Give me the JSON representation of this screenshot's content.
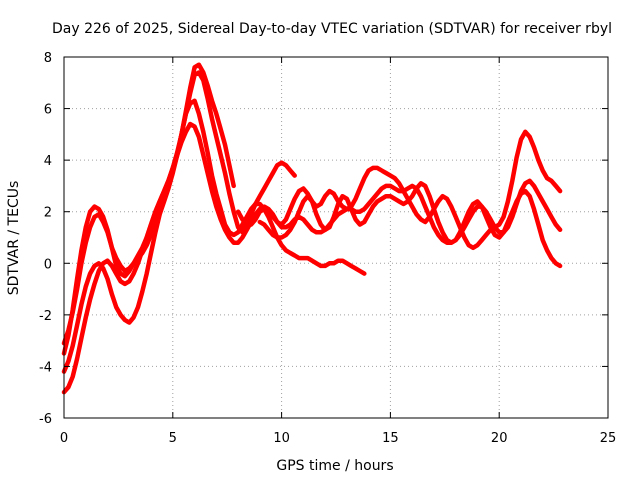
{
  "chart_data": {
    "type": "line",
    "title": "Day 226 of 2025, Sidereal Day-to-day VTEC variation (SDTVAR) for receiver rbyl",
    "xlabel": "GPS time / hours",
    "ylabel": "SDTVAR / TECUs",
    "xlim": [
      0,
      25
    ],
    "ylim": [
      -6,
      8
    ],
    "xticks": [
      0,
      5,
      10,
      15,
      20,
      25
    ],
    "yticks": [
      -6,
      -4,
      -2,
      0,
      2,
      4,
      6,
      8
    ],
    "grid": true,
    "color": "#ff0000",
    "series": [
      {
        "name": "track-1",
        "x": [
          0.0,
          0.2,
          0.4,
          0.6,
          0.8,
          1.0,
          1.2,
          1.4,
          1.6,
          1.8,
          2.0,
          2.2,
          2.4,
          2.6,
          2.8,
          3.0,
          3.2,
          3.4,
          3.6,
          3.8,
          4.0,
          4.2,
          4.4,
          4.6,
          4.8,
          5.0,
          5.2,
          5.4,
          5.6,
          5.8,
          6.0,
          6.2,
          6.4,
          6.6,
          6.8,
          7.0,
          7.2,
          7.4,
          7.6,
          7.8
        ],
        "y": [
          -3.1,
          -2.6,
          -1.9,
          -1.0,
          0.0,
          0.8,
          1.4,
          1.8,
          1.9,
          1.6,
          1.2,
          0.6,
          0.2,
          -0.1,
          -0.3,
          -0.2,
          0.0,
          0.2,
          0.4,
          0.7,
          1.1,
          1.6,
          2.1,
          2.6,
          3.1,
          3.6,
          4.2,
          5.0,
          5.9,
          6.8,
          7.6,
          7.7,
          7.4,
          6.9,
          6.3,
          5.8,
          5.2,
          4.6,
          3.8,
          3.0
        ]
      },
      {
        "name": "track-2",
        "x": [
          0.0,
          0.2,
          0.4,
          0.6,
          0.8,
          1.0,
          1.2,
          1.4,
          1.6,
          1.8,
          2.0,
          2.2,
          2.4,
          2.6,
          2.8,
          3.0,
          3.2,
          3.4,
          3.6,
          3.8,
          4.0,
          4.2,
          4.4,
          4.6,
          4.8,
          5.0,
          5.2,
          5.4,
          5.6,
          5.8,
          6.0,
          6.2,
          6.4,
          6.6,
          6.8,
          7.0,
          7.2,
          7.4,
          7.6,
          7.8,
          8.0,
          8.2,
          8.4,
          8.6,
          8.8,
          9.0,
          9.2,
          9.4,
          9.6,
          9.8,
          10.0,
          10.2,
          10.4,
          10.6
        ],
        "y": [
          -3.5,
          -2.8,
          -1.8,
          -0.6,
          0.5,
          1.4,
          2.0,
          2.2,
          2.1,
          1.8,
          1.3,
          0.6,
          -0.1,
          -0.4,
          -0.5,
          -0.3,
          0.0,
          0.3,
          0.6,
          1.0,
          1.5,
          2.0,
          2.4,
          2.8,
          3.2,
          3.7,
          4.3,
          5.0,
          5.8,
          6.6,
          7.3,
          7.4,
          7.1,
          6.4,
          5.6,
          4.9,
          4.2,
          3.5,
          2.7,
          2.0,
          1.4,
          1.2,
          1.5,
          1.9,
          2.3,
          2.6,
          2.9,
          3.2,
          3.5,
          3.8,
          3.9,
          3.8,
          3.6,
          3.4
        ]
      },
      {
        "name": "track-3",
        "x": [
          0.0,
          0.2,
          0.4,
          0.6,
          0.8,
          1.0,
          1.2,
          1.4,
          1.6,
          1.8,
          2.0,
          2.2,
          2.4,
          2.6,
          2.8,
          3.0,
          3.2,
          3.4,
          3.6,
          3.8,
          4.0,
          4.2,
          4.4,
          4.6,
          4.8,
          5.0,
          5.2,
          5.4,
          5.6,
          5.8,
          6.0,
          6.2,
          6.4,
          6.6,
          6.8,
          7.0,
          7.2,
          7.4,
          7.6,
          7.8,
          8.0,
          8.2,
          8.4,
          8.6,
          8.8,
          9.0,
          9.2,
          9.4,
          9.6,
          9.8,
          10.0,
          10.2,
          10.4,
          10.6,
          10.8,
          11.0,
          11.2,
          11.4,
          11.6,
          11.8,
          12.0,
          12.2,
          12.4,
          12.6,
          12.8,
          13.0,
          13.2,
          13.4,
          13.6,
          13.8
        ],
        "y": [
          -4.2,
          -3.8,
          -3.2,
          -2.4,
          -1.6,
          -0.9,
          -0.4,
          -0.1,
          0.0,
          -0.2,
          -0.6,
          -1.2,
          -1.7,
          -2.0,
          -2.2,
          -2.3,
          -2.1,
          -1.7,
          -1.1,
          -0.4,
          0.4,
          1.2,
          1.9,
          2.4,
          2.9,
          3.5,
          4.2,
          5.0,
          5.8,
          6.2,
          6.3,
          5.8,
          5.1,
          4.3,
          3.4,
          2.7,
          2.1,
          1.5,
          1.2,
          1.1,
          1.2,
          1.5,
          1.8,
          2.1,
          2.3,
          2.3,
          2.1,
          1.8,
          1.4,
          1.0,
          0.7,
          0.5,
          0.4,
          0.3,
          0.2,
          0.2,
          0.2,
          0.1,
          0.0,
          -0.1,
          -0.1,
          0.0,
          0.0,
          0.1,
          0.1,
          0.0,
          -0.1,
          -0.2,
          -0.3,
          -0.4
        ]
      },
      {
        "name": "track-4",
        "x": [
          0.0,
          0.2,
          0.4,
          0.6,
          0.8,
          1.0,
          1.2,
          1.4,
          1.6,
          1.8,
          2.0,
          2.2,
          2.4,
          2.6,
          2.8,
          3.0,
          3.2,
          3.4,
          3.6,
          3.8,
          4.0,
          4.2,
          4.4,
          4.6,
          4.8,
          5.0,
          5.2,
          5.4,
          5.6,
          5.8,
          6.0,
          6.2,
          6.4,
          6.6,
          6.8,
          7.0,
          7.2,
          7.4,
          7.6,
          7.8,
          8.0,
          8.2,
          8.4,
          8.6,
          8.8,
          9.0,
          9.2,
          9.4,
          9.6,
          9.8,
          10.0,
          10.2,
          10.4,
          10.6,
          10.8,
          11.0,
          11.2,
          11.4,
          11.6,
          11.8,
          12.0,
          12.2,
          12.4,
          12.6,
          12.8,
          13.0,
          13.2,
          13.4,
          13.6,
          13.8,
          14.0,
          14.2,
          14.4,
          14.6,
          14.8,
          15.0,
          15.2,
          15.4,
          15.6,
          15.8,
          16.0,
          16.2,
          16.4,
          16.6,
          16.8,
          17.0,
          17.2,
          17.4,
          17.6,
          17.8,
          18.0,
          18.2,
          18.4,
          18.6,
          18.8,
          19.0,
          19.2,
          19.4,
          19.6,
          19.8,
          20.0,
          20.2,
          20.4,
          20.6,
          20.8,
          21.0,
          21.2,
          21.4,
          21.6,
          21.8,
          22.0,
          22.2,
          22.4,
          22.6,
          22.8
        ],
        "y": [
          -5.0,
          -4.8,
          -4.4,
          -3.7,
          -2.9,
          -2.1,
          -1.4,
          -0.8,
          -0.3,
          0.0,
          0.1,
          -0.1,
          -0.4,
          -0.7,
          -0.8,
          -0.7,
          -0.4,
          0.0,
          0.5,
          1.0,
          1.5,
          2.0,
          2.4,
          2.8,
          3.2,
          3.7,
          4.2,
          4.7,
          5.1,
          5.4,
          5.3,
          4.9,
          4.2,
          3.5,
          2.8,
          2.2,
          1.7,
          1.3,
          1.0,
          0.8,
          0.8,
          1.0,
          1.3,
          1.6,
          1.9,
          2.1,
          2.2,
          2.1,
          1.9,
          1.6,
          1.4,
          1.4,
          1.5,
          1.7,
          1.8,
          1.7,
          1.5,
          1.3,
          1.2,
          1.2,
          1.3,
          1.5,
          1.7,
          1.9,
          2.0,
          2.1,
          2.1,
          2.0,
          2.0,
          2.1,
          2.3,
          2.5,
          2.7,
          2.9,
          3.0,
          3.0,
          2.9,
          2.8,
          2.8,
          2.9,
          3.0,
          2.9,
          2.6,
          2.2,
          1.8,
          1.4,
          1.1,
          0.9,
          0.8,
          0.8,
          0.9,
          1.1,
          1.4,
          1.7,
          2.0,
          2.2,
          2.2,
          2.0,
          1.7,
          1.4,
          1.2,
          1.2,
          1.4,
          1.8,
          2.3,
          2.8,
          3.1,
          3.2,
          3.0,
          2.7,
          2.4,
          2.1,
          1.8,
          1.5,
          1.3
        ]
      },
      {
        "name": "track-5",
        "x": [
          8.0,
          8.2,
          8.4,
          8.6,
          8.8,
          9.0,
          9.2,
          9.4,
          9.6,
          9.8,
          10.0,
          10.2,
          10.4,
          10.6,
          10.8,
          11.0,
          11.2,
          11.4,
          11.6,
          11.8,
          12.0,
          12.2,
          12.4,
          12.6,
          12.8,
          13.0,
          13.2,
          13.4,
          13.6,
          13.8,
          14.0,
          14.2,
          14.4,
          14.6,
          14.8,
          15.0,
          15.2,
          15.4,
          15.6,
          15.8,
          16.0,
          16.2,
          16.4,
          16.6,
          16.8,
          17.0,
          17.2,
          17.4,
          17.6,
          17.8,
          18.0,
          18.2,
          18.4,
          18.6,
          18.8,
          19.0,
          19.2,
          19.4,
          19.6,
          19.8,
          20.0,
          20.2,
          20.4,
          20.6,
          20.8,
          21.0,
          21.2,
          21.4,
          21.6,
          21.8,
          22.0,
          22.2,
          22.4,
          22.6,
          22.8
        ],
        "y": [
          2.0,
          1.7,
          1.5,
          1.5,
          1.7,
          2.0,
          2.1,
          2.0,
          1.8,
          1.6,
          1.5,
          1.7,
          2.1,
          2.5,
          2.8,
          2.9,
          2.7,
          2.4,
          2.2,
          2.3,
          2.6,
          2.8,
          2.7,
          2.4,
          2.2,
          2.1,
          2.2,
          2.5,
          2.9,
          3.3,
          3.6,
          3.7,
          3.7,
          3.6,
          3.5,
          3.4,
          3.3,
          3.1,
          2.8,
          2.5,
          2.2,
          1.9,
          1.7,
          1.6,
          1.8,
          2.1,
          2.4,
          2.6,
          2.5,
          2.2,
          1.8,
          1.4,
          1.0,
          0.7,
          0.6,
          0.7,
          0.9,
          1.1,
          1.3,
          1.4,
          1.5,
          1.8,
          2.4,
          3.2,
          4.1,
          4.8,
          5.1,
          4.9,
          4.5,
          4.0,
          3.6,
          3.3,
          3.2,
          3.0,
          2.8
        ]
      },
      {
        "name": "track-6",
        "x": [
          9.0,
          9.2,
          9.4,
          9.6,
          9.8,
          10.0,
          10.2,
          10.4,
          10.6,
          10.8,
          11.0,
          11.2,
          11.4,
          11.6,
          11.8,
          12.0,
          12.2,
          12.4,
          12.6,
          12.8,
          13.0,
          13.2,
          13.4,
          13.6,
          13.8,
          14.0,
          14.2,
          14.4,
          14.6,
          14.8,
          15.0,
          15.2,
          15.4,
          15.6,
          15.8,
          16.0,
          16.2,
          16.4,
          16.6,
          16.8,
          17.0,
          17.2,
          17.4,
          17.6,
          17.8,
          18.0,
          18.2,
          18.4,
          18.6,
          18.8,
          19.0,
          19.2,
          19.4,
          19.6,
          19.8,
          20.0,
          20.2,
          20.4,
          20.6,
          20.8,
          21.0,
          21.2,
          21.4,
          21.6,
          21.8,
          22.0,
          22.2,
          22.4,
          22.6,
          22.8
        ],
        "y": [
          1.6,
          1.5,
          1.3,
          1.1,
          1.0,
          1.0,
          1.1,
          1.3,
          1.6,
          2.0,
          2.4,
          2.6,
          2.4,
          1.9,
          1.5,
          1.3,
          1.4,
          1.8,
          2.3,
          2.6,
          2.5,
          2.1,
          1.7,
          1.5,
          1.6,
          1.9,
          2.2,
          2.4,
          2.5,
          2.6,
          2.6,
          2.5,
          2.4,
          2.3,
          2.4,
          2.6,
          2.9,
          3.1,
          3.0,
          2.6,
          2.1,
          1.6,
          1.2,
          0.9,
          0.8,
          0.9,
          1.2,
          1.6,
          2.0,
          2.3,
          2.4,
          2.2,
          1.8,
          1.4,
          1.1,
          1.0,
          1.2,
          1.6,
          2.0,
          2.4,
          2.7,
          2.8,
          2.6,
          2.1,
          1.5,
          0.9,
          0.5,
          0.2,
          0.0,
          -0.1
        ]
      }
    ]
  }
}
